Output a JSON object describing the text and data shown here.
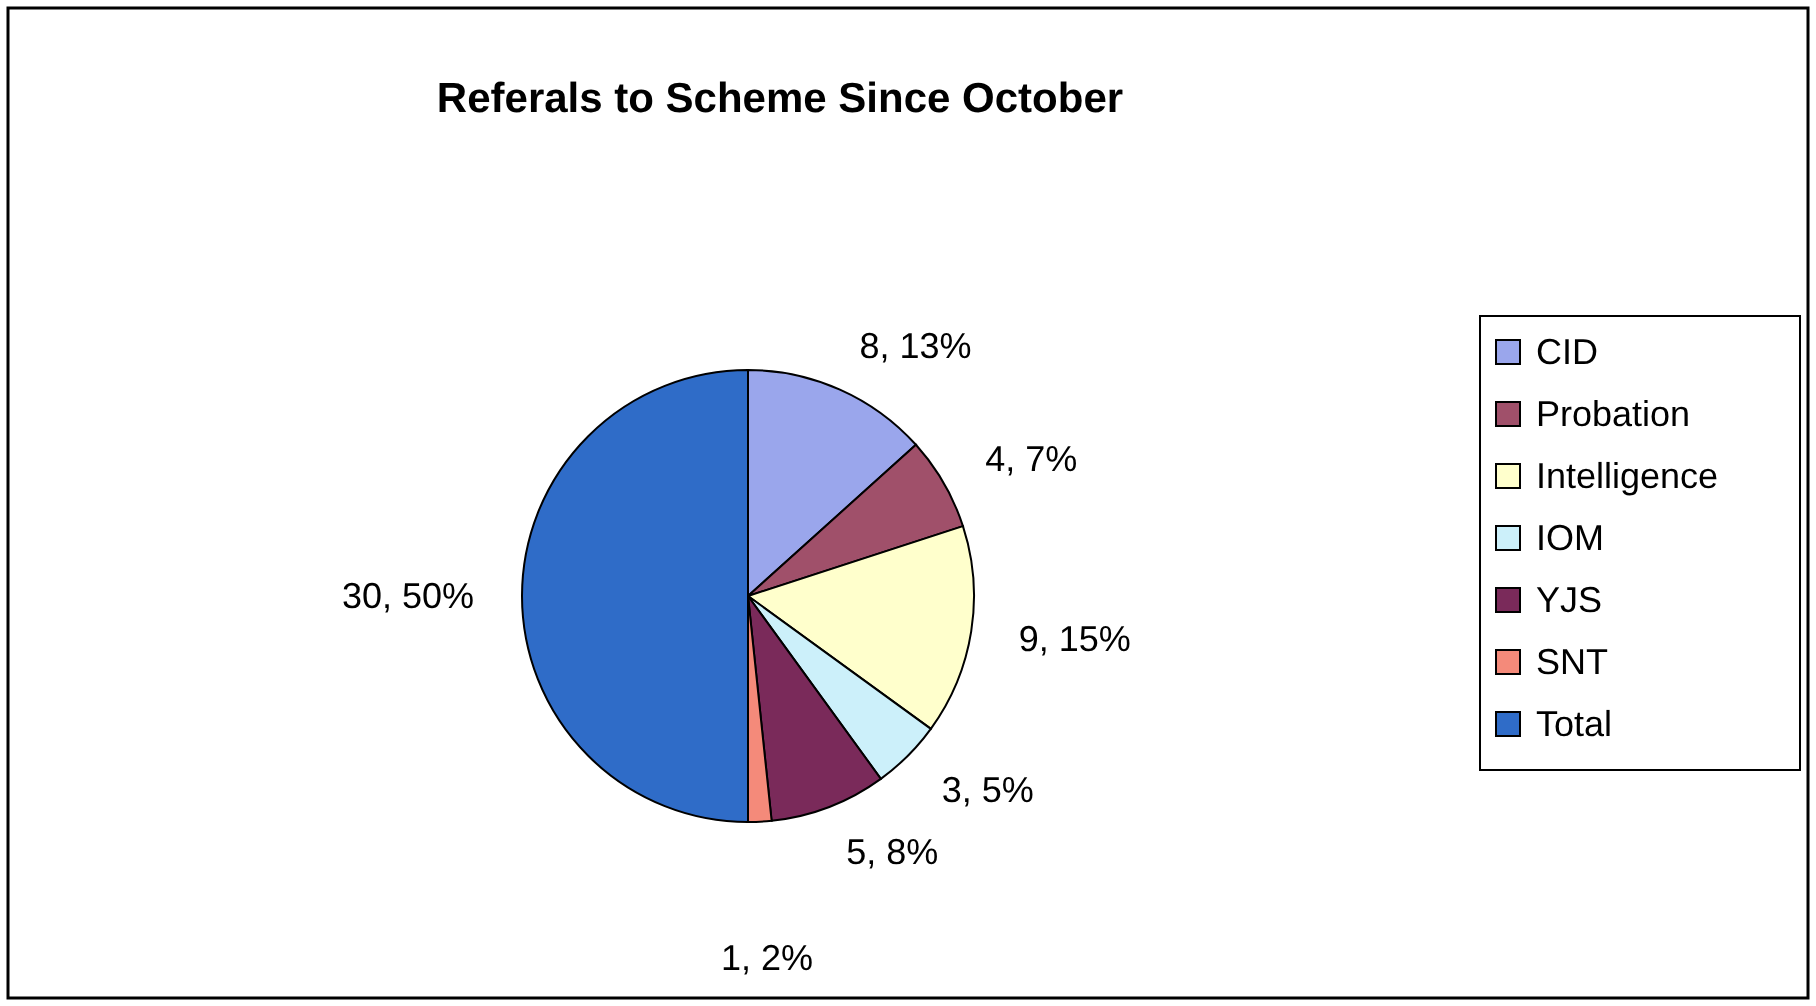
{
  "chart_data": {
    "type": "pie",
    "title": "Referals to Scheme Since October",
    "categories": [
      "CID",
      "Probation",
      "Intelligence",
      "IOM",
      "YJS",
      "SNT",
      "Total"
    ],
    "values": [
      8,
      4,
      9,
      3,
      5,
      1,
      30
    ],
    "colors": [
      "#9aa6ec",
      "#a0506a",
      "#ffffcc",
      "#ccf0fa",
      "#7a2a5a",
      "#f48a7a",
      "#2f6cc8"
    ],
    "value_labels": [
      "8, 13%",
      "4, 7%",
      "9, 15%",
      "3, 5%",
      "5, 8%",
      "1, 2%",
      "30, 50%"
    ],
    "legend": "right"
  }
}
